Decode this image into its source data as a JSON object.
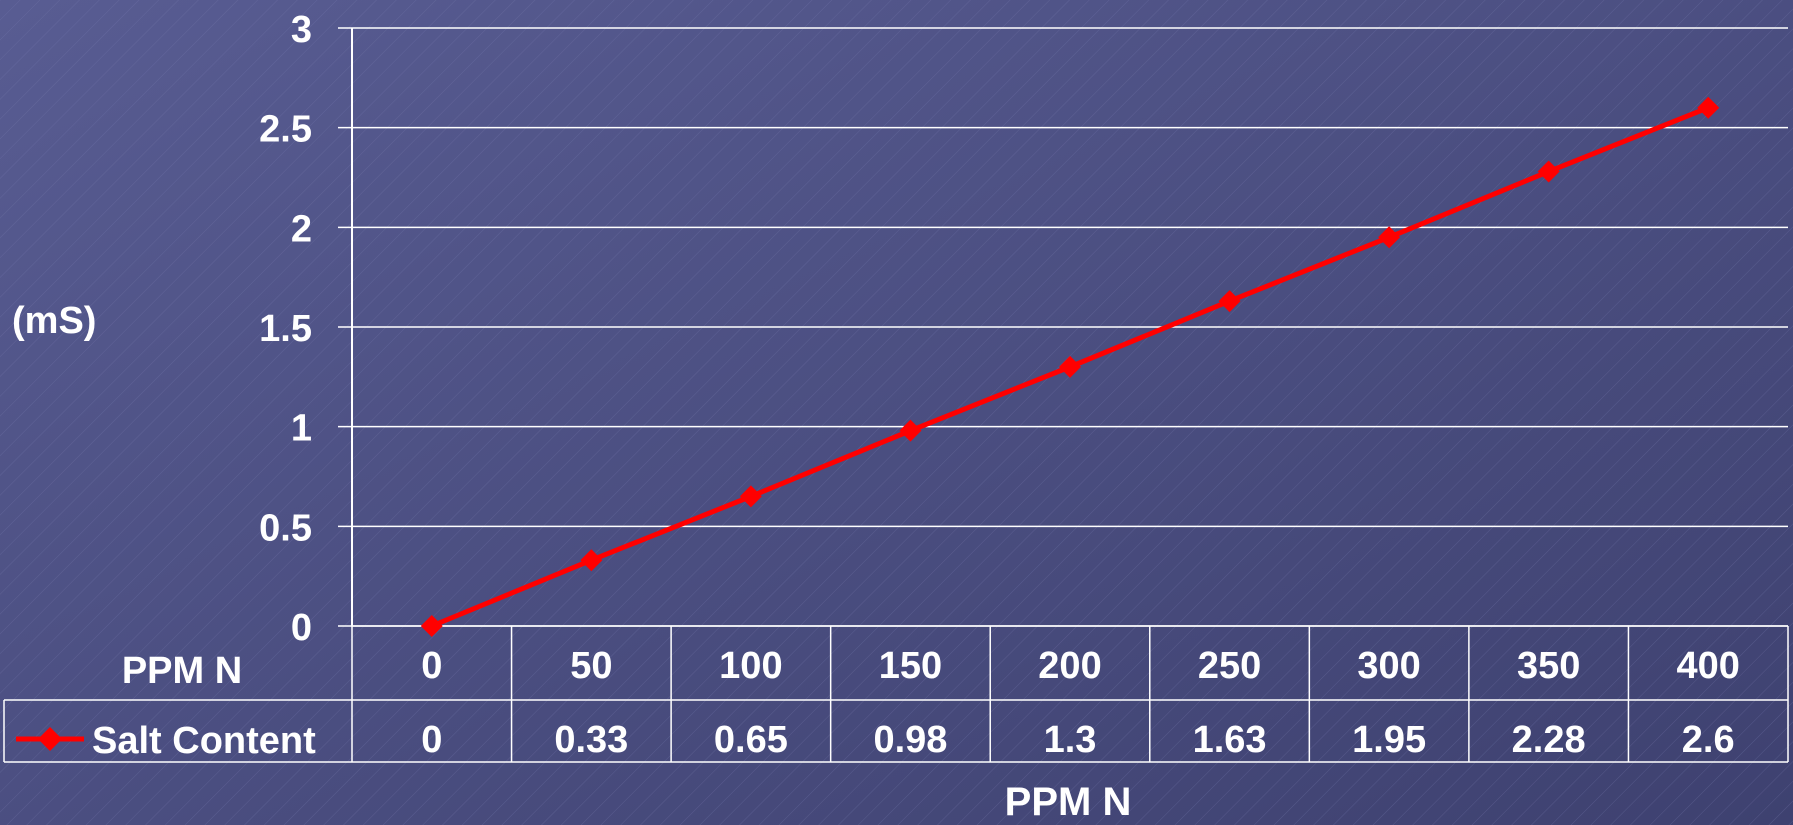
{
  "chart_data": {
    "type": "line",
    "title": "",
    "ylabel": "(mS)",
    "xlabel": "PPM N",
    "table_header_label": "PPM N",
    "ylim": [
      0,
      3
    ],
    "yticks": [
      "0",
      "0.5",
      "1",
      "1.5",
      "2",
      "2.5",
      "3"
    ],
    "grid": true,
    "legend": "data-table",
    "categories": [
      "0",
      "50",
      "100",
      "150",
      "200",
      "250",
      "300",
      "350",
      "400"
    ],
    "series": [
      {
        "name": "Salt Content",
        "color": "#ff0000",
        "marker": "diamond",
        "values": [
          0,
          0.33,
          0.65,
          0.98,
          1.3,
          1.63,
          1.95,
          2.28,
          2.6
        ],
        "labels": [
          "0",
          "0.33",
          "0.65",
          "0.98",
          "1.3",
          "1.63",
          "1.95",
          "2.28",
          "2.6"
        ]
      }
    ]
  }
}
